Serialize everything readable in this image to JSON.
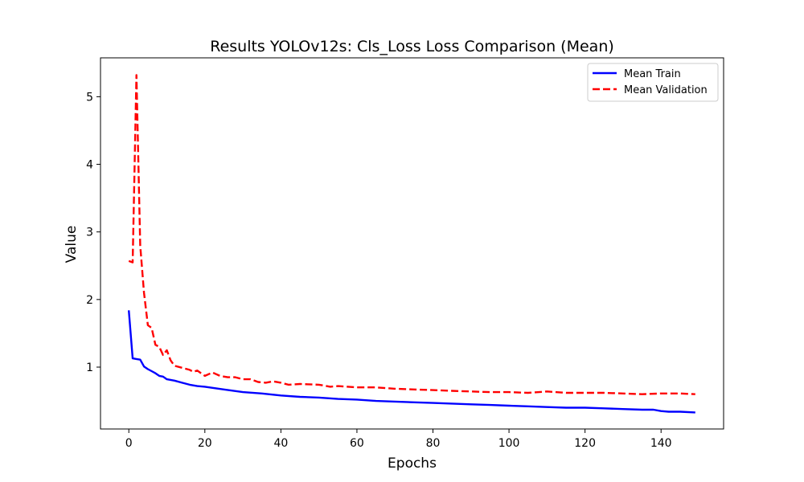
{
  "chart_data": {
    "type": "line",
    "title": "Results YOLOv12s: Cls_Loss Loss Comparison (Mean)",
    "xlabel": "Epochs",
    "ylabel": "Value",
    "xlim": [
      -7.45,
      156.45
    ],
    "ylim": [
      0.085,
      5.575
    ],
    "xticks": [
      0,
      20,
      40,
      60,
      80,
      100,
      120,
      140
    ],
    "yticks": [
      1,
      2,
      3,
      4,
      5
    ],
    "grid": false,
    "legend_position": "top-right",
    "series": [
      {
        "name": "Mean Train",
        "color": "#0000ff",
        "style": "solid",
        "points": [
          [
            0,
            1.84
          ],
          [
            1,
            1.13
          ],
          [
            2,
            1.12
          ],
          [
            3,
            1.11
          ],
          [
            4,
            1.01
          ],
          [
            5,
            0.97
          ],
          [
            6,
            0.94
          ],
          [
            7,
            0.91
          ],
          [
            8,
            0.87
          ],
          [
            9,
            0.86
          ],
          [
            10,
            0.82
          ],
          [
            12,
            0.8
          ],
          [
            14,
            0.77
          ],
          [
            16,
            0.74
          ],
          [
            18,
            0.72
          ],
          [
            20,
            0.71
          ],
          [
            25,
            0.67
          ],
          [
            30,
            0.63
          ],
          [
            35,
            0.61
          ],
          [
            40,
            0.58
          ],
          [
            45,
            0.56
          ],
          [
            50,
            0.55
          ],
          [
            55,
            0.53
          ],
          [
            60,
            0.52
          ],
          [
            65,
            0.5
          ],
          [
            70,
            0.49
          ],
          [
            75,
            0.48
          ],
          [
            80,
            0.47
          ],
          [
            85,
            0.46
          ],
          [
            90,
            0.45
          ],
          [
            95,
            0.44
          ],
          [
            100,
            0.43
          ],
          [
            105,
            0.42
          ],
          [
            110,
            0.41
          ],
          [
            115,
            0.4
          ],
          [
            120,
            0.4
          ],
          [
            125,
            0.39
          ],
          [
            130,
            0.38
          ],
          [
            135,
            0.37
          ],
          [
            138,
            0.37
          ],
          [
            140,
            0.35
          ],
          [
            142,
            0.34
          ],
          [
            145,
            0.34
          ],
          [
            149,
            0.33
          ]
        ]
      },
      {
        "name": "Mean Validation",
        "color": "#ff0000",
        "style": "dashed",
        "points": [
          [
            0,
            2.57
          ],
          [
            1,
            2.55
          ],
          [
            2,
            5.32
          ],
          [
            3,
            2.8
          ],
          [
            4,
            2.1
          ],
          [
            5,
            1.62
          ],
          [
            6,
            1.58
          ],
          [
            7,
            1.33
          ],
          [
            8,
            1.3
          ],
          [
            9,
            1.18
          ],
          [
            10,
            1.25
          ],
          [
            11,
            1.1
          ],
          [
            12,
            1.02
          ],
          [
            14,
            0.99
          ],
          [
            16,
            0.96
          ],
          [
            17,
            0.93
          ],
          [
            18,
            0.95
          ],
          [
            20,
            0.87
          ],
          [
            22,
            0.92
          ],
          [
            24,
            0.87
          ],
          [
            26,
            0.85
          ],
          [
            28,
            0.85
          ],
          [
            30,
            0.82
          ],
          [
            32,
            0.82
          ],
          [
            34,
            0.78
          ],
          [
            36,
            0.77
          ],
          [
            38,
            0.79
          ],
          [
            40,
            0.77
          ],
          [
            42,
            0.74
          ],
          [
            45,
            0.75
          ],
          [
            50,
            0.74
          ],
          [
            53,
            0.71
          ],
          [
            55,
            0.72
          ],
          [
            60,
            0.7
          ],
          [
            65,
            0.7
          ],
          [
            70,
            0.68
          ],
          [
            75,
            0.67
          ],
          [
            80,
            0.66
          ],
          [
            85,
            0.65
          ],
          [
            90,
            0.64
          ],
          [
            95,
            0.63
          ],
          [
            100,
            0.63
          ],
          [
            105,
            0.62
          ],
          [
            110,
            0.64
          ],
          [
            115,
            0.62
          ],
          [
            120,
            0.62
          ],
          [
            125,
            0.62
          ],
          [
            130,
            0.61
          ],
          [
            135,
            0.6
          ],
          [
            140,
            0.61
          ],
          [
            145,
            0.61
          ],
          [
            149,
            0.6
          ]
        ]
      }
    ]
  }
}
